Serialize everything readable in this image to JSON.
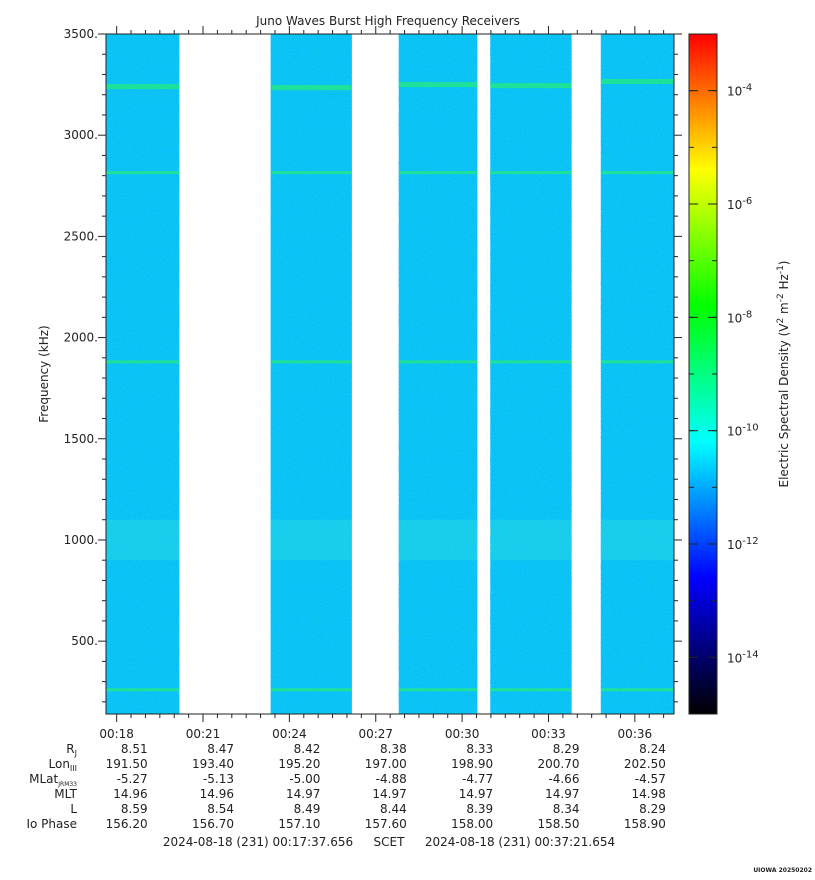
{
  "chart_data": {
    "type": "heatmap",
    "title": "Juno Waves Burst High Frequency Receivers",
    "ylabel": "Frequency (kHz)",
    "ylim": [
      140,
      3500
    ],
    "y_ticks": [
      "3500.",
      "3000.",
      "2500.",
      "2000.",
      "1500.",
      "1000.",
      "500."
    ],
    "y_tick_values": [
      3500,
      3000,
      2500,
      2000,
      1500,
      1000,
      500
    ],
    "x_ticks": [
      "00:18",
      "00:21",
      "00:24",
      "00:27",
      "00:30",
      "00:33",
      "00:36"
    ],
    "x_tick_minutes": [
      18,
      21,
      24,
      27,
      30,
      33,
      36
    ],
    "xlim_minutes": [
      17.63,
      37.36
    ],
    "data_segments_minutes": [
      [
        17.63,
        20.18
      ],
      [
        23.35,
        26.17
      ],
      [
        27.8,
        30.53
      ],
      [
        30.98,
        33.8
      ],
      [
        34.82,
        37.36
      ]
    ],
    "emission_lines": [
      {
        "freq": 3240,
        "segment_freqs": [
          3240,
          3235,
          3250,
          3245,
          3265
        ]
      },
      {
        "freq": 2815
      },
      {
        "freq": 1880
      },
      {
        "freq": 260
      }
    ],
    "background_level": "1e-12",
    "colorbar": {
      "label": "Electric Spectral Density (V² m⁻² Hz⁻¹)",
      "label_main": "Electric Spectral Density (V",
      "label_sup1": "2",
      "label_mid1": " m",
      "label_sup2": "-2",
      "label_mid2": " Hz",
      "label_sup3": "-1",
      "label_end": ")",
      "scale": "log",
      "range_exp": [
        -15,
        -3
      ],
      "tick_exponents": [
        -4,
        -6,
        -8,
        -10,
        -12,
        -14
      ],
      "tick_base": "10",
      "tick_exp_labels": [
        "-4",
        "-6",
        "-8",
        "-10",
        "-12",
        "-14"
      ],
      "colors": [
        "#000000",
        "#000080",
        "#0000ff",
        "#0080ff",
        "#00ffff",
        "#00ff80",
        "#00ff00",
        "#80ff00",
        "#ffff00",
        "#ff8000",
        "#ff0000"
      ]
    },
    "ephemeris": {
      "rows": [
        {
          "label": "R",
          "sub": "J",
          "values": [
            "8.51",
            "8.47",
            "8.42",
            "8.38",
            "8.33",
            "8.29",
            "8.24"
          ]
        },
        {
          "label": "Lon",
          "sub": "III",
          "values": [
            "191.50",
            "193.40",
            "195.20",
            "197.00",
            "198.90",
            "200.70",
            "202.50"
          ]
        },
        {
          "label": "MLat",
          "sub": "JRM33",
          "values": [
            "-5.27",
            "-5.13",
            "-5.00",
            "-4.88",
            "-4.77",
            "-4.66",
            "-4.57"
          ]
        },
        {
          "label": "MLT",
          "sub": "",
          "values": [
            "14.96",
            "14.96",
            "14.97",
            "14.97",
            "14.97",
            "14.97",
            "14.98"
          ]
        },
        {
          "label": "L",
          "sub": "",
          "values": [
            "8.59",
            "8.54",
            "8.49",
            "8.44",
            "8.39",
            "8.34",
            "8.29"
          ]
        },
        {
          "label": "Io Phase",
          "sub": "",
          "values": [
            "156.20",
            "156.70",
            "157.10",
            "157.60",
            "158.00",
            "158.50",
            "158.90"
          ]
        }
      ]
    },
    "time_range": {
      "start": "2024-08-18 (231) 00:17:37.656",
      "scet": "SCET",
      "end": "2024-08-18 (231) 00:37:21.654"
    },
    "watermark": "UIOWA 20250202"
  }
}
